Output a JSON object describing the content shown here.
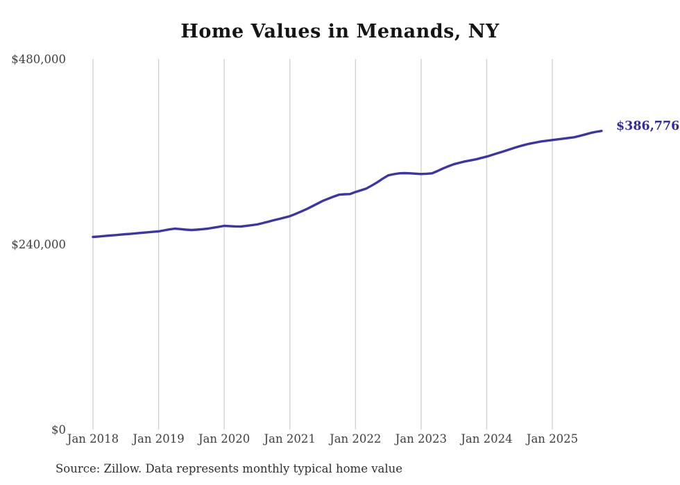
{
  "title": "Home Values in Menands, NY",
  "end_label": "$386,776",
  "source_note": "Source: Zillow. Data represents monthly typical home value",
  "colors": {
    "line": "#3c35a3",
    "end_label": "#322c97",
    "grid": "#cbcbcb",
    "axis_text": "#3f3f3f",
    "title": "#151515"
  },
  "chart_data": {
    "type": "line",
    "title": "Home Values in Menands, NY",
    "xlabel": "",
    "ylabel": "",
    "grid": "vertical-only",
    "legend": "none",
    "ylim": [
      0,
      480000
    ],
    "y_ticks": [
      {
        "value": 0,
        "label": "$0"
      },
      {
        "value": 240000,
        "label": "$240,000"
      },
      {
        "value": 480000,
        "label": "$480,000"
      }
    ],
    "x_tick_labels": [
      "Jan 2018",
      "Jan 2019",
      "Jan 2020",
      "Jan 2021",
      "Jan 2022",
      "Jan 2023",
      "Jan 2024",
      "Jan 2025"
    ],
    "annotation": "$386,776",
    "series": [
      {
        "name": "Typical home value",
        "frequency": "monthly",
        "start": "2018-01",
        "end": "2025-10",
        "final_value": 386776,
        "final_value_label": "$386,776",
        "values": [
          249400,
          250000,
          250600,
          251200,
          251800,
          252400,
          253000,
          253600,
          254200,
          254900,
          255500,
          256100,
          256600,
          258000,
          259200,
          260200,
          259600,
          258900,
          258400,
          258900,
          259500,
          260200,
          261400,
          262600,
          263800,
          263500,
          263100,
          262900,
          263700,
          264600,
          265600,
          267300,
          269100,
          271000,
          272700,
          274500,
          276300,
          279200,
          282200,
          285300,
          288800,
          292400,
          296100,
          299000,
          301700,
          304200,
          304700,
          305000,
          307700,
          309800,
          312200,
          316100,
          320300,
          325000,
          329300,
          330800,
          331900,
          332100,
          331900,
          331400,
          331000,
          331300,
          331900,
          334800,
          338200,
          341000,
          343600,
          345500,
          347200,
          348600,
          349900,
          351700,
          353500,
          355700,
          357900,
          360100,
          362400,
          364700,
          366900,
          368800,
          370500,
          371900,
          373200,
          374100,
          375000,
          375900,
          376800,
          377700,
          378600,
          380300,
          382200,
          384200,
          385600,
          386776
        ]
      }
    ]
  }
}
